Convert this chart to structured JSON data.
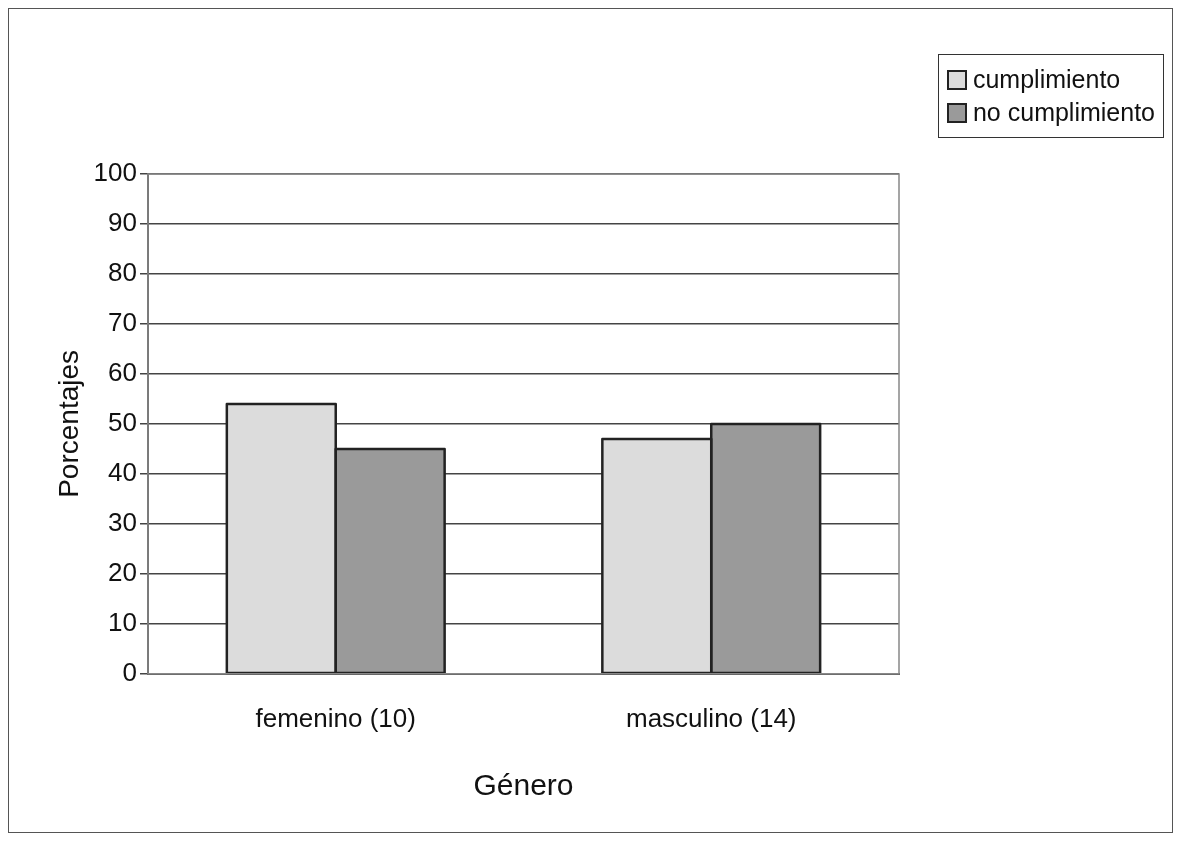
{
  "chart_data": {
    "type": "bar",
    "xlabel": "Género",
    "ylabel": "Porcentajes",
    "categories": [
      "femenino (10)",
      "masculino (14)"
    ],
    "series": [
      {
        "name": "cumplimiento",
        "color": "#dcdcdc",
        "values": [
          54,
          47
        ]
      },
      {
        "name": "no cumplimiento",
        "color": "#9a9a9a",
        "values": [
          45,
          50
        ]
      }
    ],
    "ylim": [
      0,
      100
    ],
    "yticks": [
      0,
      10,
      20,
      30,
      40,
      50,
      60,
      70,
      80,
      90,
      100
    ],
    "grid": "y",
    "legend": "top right"
  }
}
